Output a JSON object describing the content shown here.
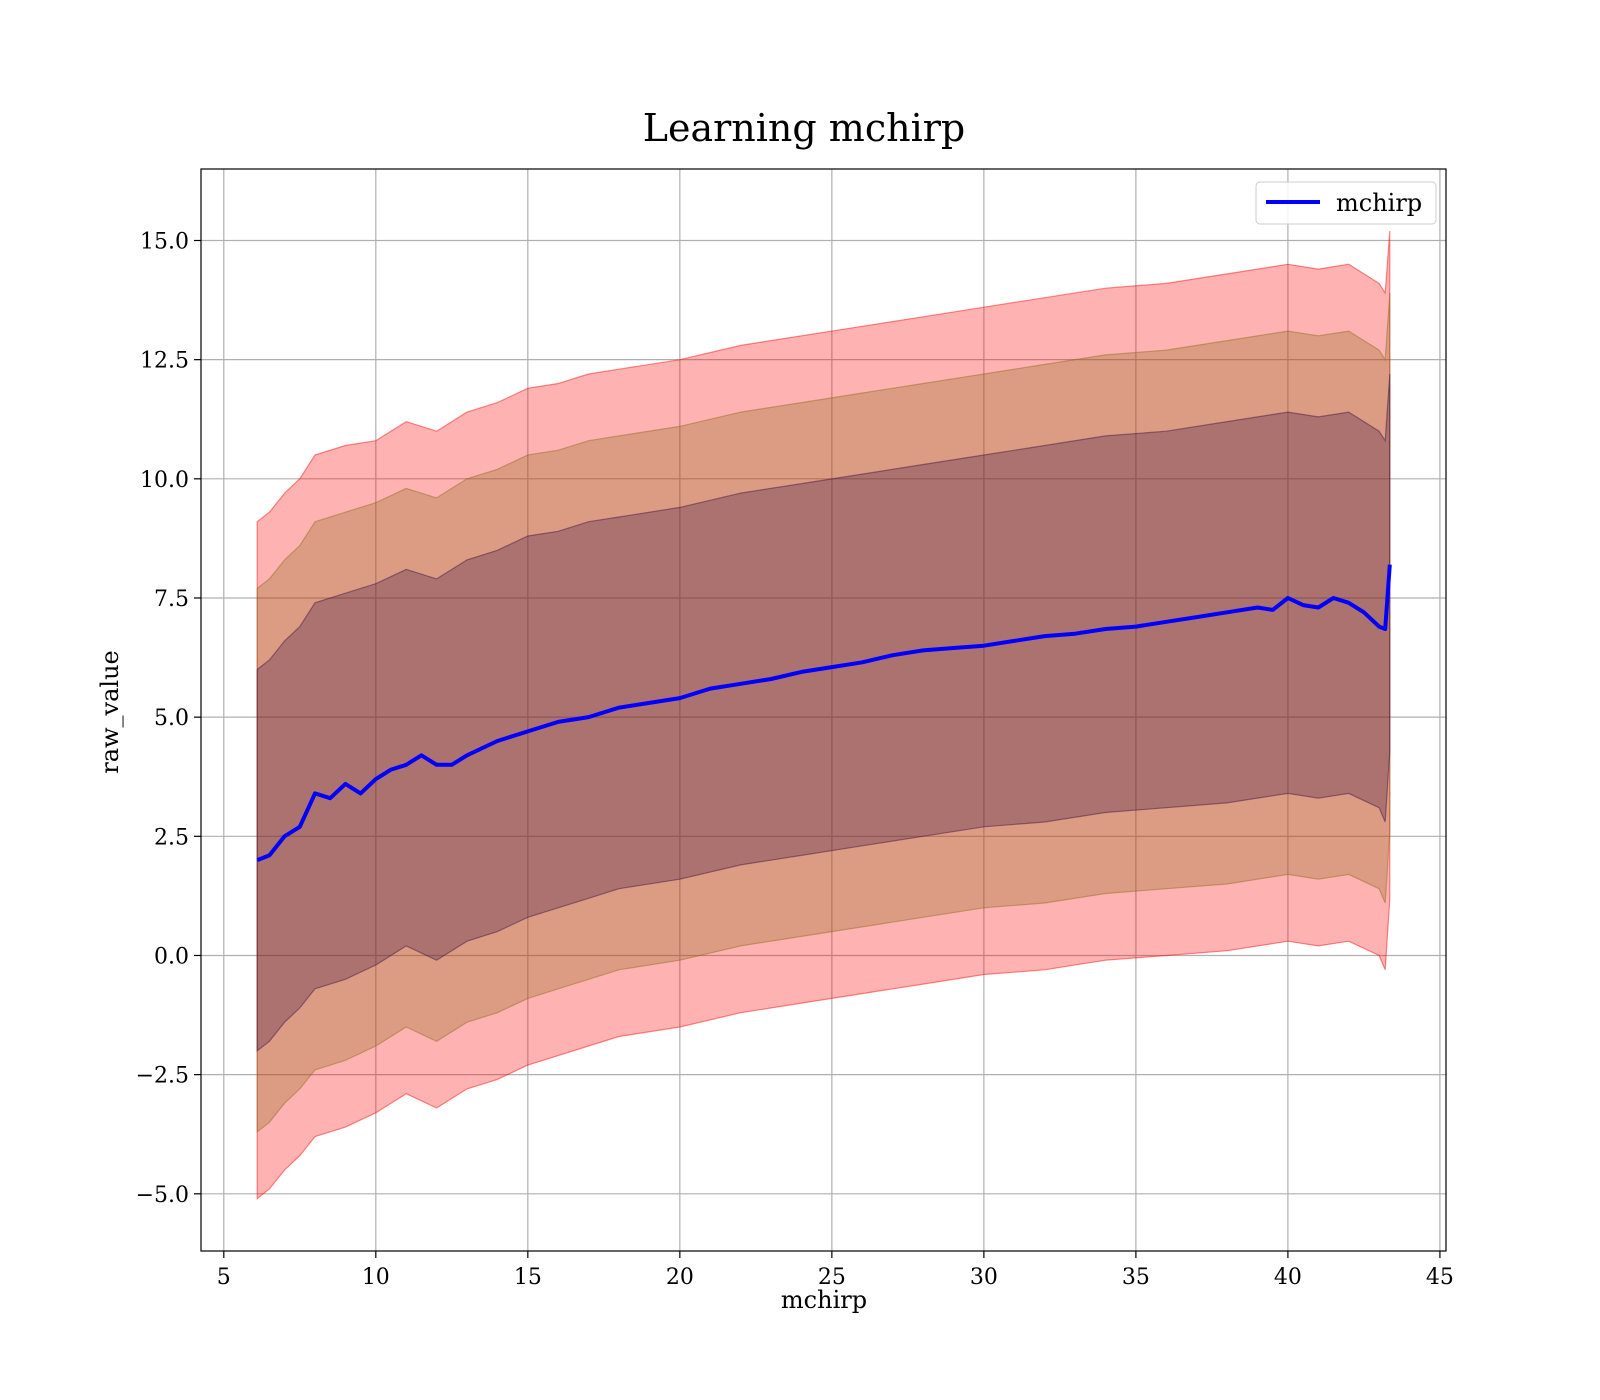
{
  "chart_data": {
    "type": "line",
    "title": "Learning mchirp",
    "xlabel": "mchirp",
    "ylabel": "raw_value",
    "xlim": [
      4.25,
      45.2
    ],
    "ylim": [
      -6.2,
      16.5
    ],
    "xticks": [
      5,
      10,
      15,
      20,
      25,
      30,
      35,
      40,
      45
    ],
    "yticks": [
      -5.0,
      -2.5,
      0.0,
      2.5,
      5.0,
      7.5,
      10.0,
      12.5,
      15.0
    ],
    "xtick_labels": [
      "5",
      "10",
      "15",
      "20",
      "25",
      "30",
      "35",
      "40",
      "45"
    ],
    "ytick_labels": [
      "−5.0",
      "−2.5",
      "0.0",
      "2.5",
      "5.0",
      "7.5",
      "10.0",
      "12.5",
      "15.0"
    ],
    "grid": true,
    "legend": {
      "position": "upper-right",
      "entries": [
        "mchirp"
      ]
    },
    "series": [
      {
        "name": "mchirp",
        "color": "#0000ff",
        "x": [
          6.1,
          6.5,
          7.0,
          7.5,
          8.0,
          8.5,
          9.0,
          9.5,
          10.0,
          10.5,
          11.0,
          11.5,
          12.0,
          12.5,
          13.0,
          14.0,
          15.0,
          16.0,
          17.0,
          18.0,
          19.0,
          20.0,
          21.0,
          22.0,
          23.0,
          24.0,
          25.0,
          26.0,
          27.0,
          28.0,
          29.0,
          30.0,
          31.0,
          32.0,
          33.0,
          34.0,
          35.0,
          36.0,
          37.0,
          38.0,
          39.0,
          39.5,
          40.0,
          40.5,
          41.0,
          41.5,
          42.0,
          42.5,
          43.0,
          43.2,
          43.35
        ],
        "y": [
          2.0,
          2.1,
          2.5,
          2.7,
          3.4,
          3.3,
          3.6,
          3.4,
          3.7,
          3.9,
          4.0,
          4.2,
          4.0,
          4.0,
          4.2,
          4.5,
          4.7,
          4.9,
          5.0,
          5.2,
          5.3,
          5.4,
          5.6,
          5.7,
          5.8,
          5.95,
          6.05,
          6.15,
          6.3,
          6.4,
          6.45,
          6.5,
          6.6,
          6.7,
          6.75,
          6.85,
          6.9,
          7.0,
          7.1,
          7.2,
          7.3,
          7.25,
          7.5,
          7.35,
          7.3,
          7.5,
          7.4,
          7.2,
          6.9,
          6.85,
          8.2
        ]
      }
    ],
    "bands": [
      {
        "color": "#ff0000",
        "opacity": 0.3,
        "x": [
          6.1,
          6.5,
          7.0,
          7.5,
          8.0,
          9.0,
          10.0,
          11.0,
          12.0,
          13.0,
          14.0,
          15.0,
          16.0,
          17.0,
          18.0,
          20.0,
          22.0,
          24.0,
          26.0,
          28.0,
          30.0,
          32.0,
          34.0,
          36.0,
          38.0,
          40.0,
          41.0,
          42.0,
          43.0,
          43.2,
          43.35
        ],
        "upper": [
          9.1,
          9.3,
          9.7,
          10.0,
          10.5,
          10.7,
          10.8,
          11.2,
          11.0,
          11.4,
          11.6,
          11.9,
          12.0,
          12.2,
          12.3,
          12.5,
          12.8,
          13.0,
          13.2,
          13.4,
          13.6,
          13.8,
          14.0,
          14.1,
          14.3,
          14.5,
          14.4,
          14.5,
          14.1,
          13.9,
          15.2
        ],
        "lower": [
          -5.1,
          -4.9,
          -4.5,
          -4.2,
          -3.8,
          -3.6,
          -3.3,
          -2.9,
          -3.2,
          -2.8,
          -2.6,
          -2.3,
          -2.1,
          -1.9,
          -1.7,
          -1.5,
          -1.2,
          -1.0,
          -0.8,
          -0.6,
          -0.4,
          -0.3,
          -0.1,
          0.0,
          0.1,
          0.3,
          0.2,
          0.3,
          0.0,
          -0.3,
          1.2
        ]
      },
      {
        "color": "#8b6a1a",
        "opacity": 0.3,
        "x": [
          6.1,
          6.5,
          7.0,
          7.5,
          8.0,
          9.0,
          10.0,
          11.0,
          12.0,
          13.0,
          14.0,
          15.0,
          16.0,
          17.0,
          18.0,
          20.0,
          22.0,
          24.0,
          26.0,
          28.0,
          30.0,
          32.0,
          34.0,
          36.0,
          38.0,
          40.0,
          41.0,
          42.0,
          43.0,
          43.2,
          43.35
        ],
        "upper": [
          7.7,
          7.9,
          8.3,
          8.6,
          9.1,
          9.3,
          9.5,
          9.8,
          9.6,
          10.0,
          10.2,
          10.5,
          10.6,
          10.8,
          10.9,
          11.1,
          11.4,
          11.6,
          11.8,
          12.0,
          12.2,
          12.4,
          12.6,
          12.7,
          12.9,
          13.1,
          13.0,
          13.1,
          12.7,
          12.5,
          13.9
        ],
        "lower": [
          -3.7,
          -3.5,
          -3.1,
          -2.8,
          -2.4,
          -2.2,
          -1.9,
          -1.5,
          -1.8,
          -1.4,
          -1.2,
          -0.9,
          -0.7,
          -0.5,
          -0.3,
          -0.1,
          0.2,
          0.4,
          0.6,
          0.8,
          1.0,
          1.1,
          1.3,
          1.4,
          1.5,
          1.7,
          1.6,
          1.7,
          1.4,
          1.1,
          2.6
        ]
      },
      {
        "color": "#3a1040",
        "opacity": 0.3,
        "x": [
          6.1,
          6.5,
          7.0,
          7.5,
          8.0,
          9.0,
          10.0,
          11.0,
          12.0,
          13.0,
          14.0,
          15.0,
          16.0,
          17.0,
          18.0,
          20.0,
          22.0,
          24.0,
          26.0,
          28.0,
          30.0,
          32.0,
          34.0,
          36.0,
          38.0,
          40.0,
          41.0,
          42.0,
          43.0,
          43.2,
          43.35
        ],
        "upper": [
          6.0,
          6.2,
          6.6,
          6.9,
          7.4,
          7.6,
          7.8,
          8.1,
          7.9,
          8.3,
          8.5,
          8.8,
          8.9,
          9.1,
          9.2,
          9.4,
          9.7,
          9.9,
          10.1,
          10.3,
          10.5,
          10.7,
          10.9,
          11.0,
          11.2,
          11.4,
          11.3,
          11.4,
          11.0,
          10.8,
          12.2
        ],
        "lower": [
          -2.0,
          -1.8,
          -1.4,
          -1.1,
          -0.7,
          -0.5,
          -0.2,
          0.2,
          -0.1,
          0.3,
          0.5,
          0.8,
          1.0,
          1.2,
          1.4,
          1.6,
          1.9,
          2.1,
          2.3,
          2.5,
          2.7,
          2.8,
          3.0,
          3.1,
          3.2,
          3.4,
          3.3,
          3.4,
          3.1,
          2.8,
          4.3
        ]
      }
    ]
  }
}
